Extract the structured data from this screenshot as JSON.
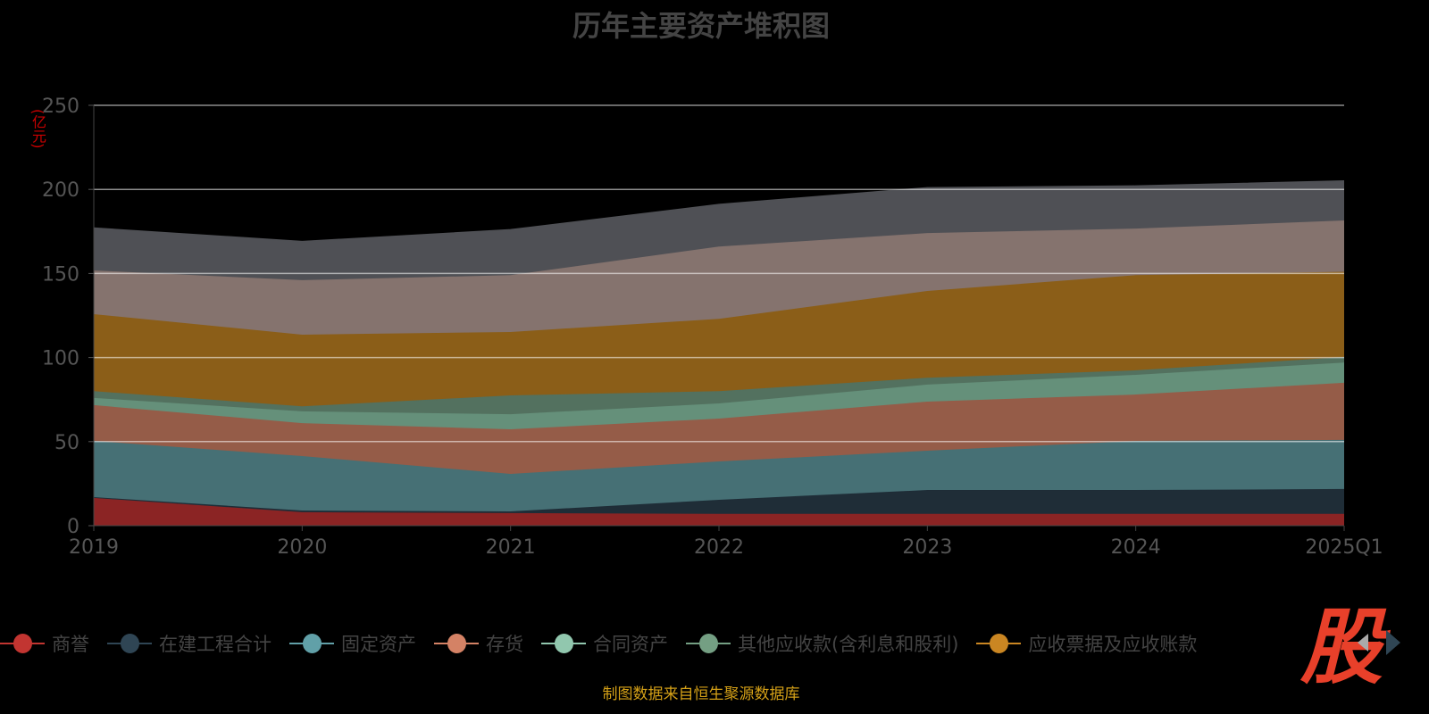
{
  "chart_data": {
    "type": "area",
    "stacked": true,
    "title": "历年主要资产堆积图",
    "ylabel": "(亿元)",
    "xlabel": "",
    "categories": [
      "2019",
      "2020",
      "2021",
      "2022",
      "2023",
      "2024",
      "2025Q1"
    ],
    "ylim": [
      0,
      250
    ],
    "yticks": [
      0,
      50,
      100,
      150,
      200,
      250
    ],
    "grid": true,
    "legend_position": "bottom",
    "series": [
      {
        "name": "商誉",
        "color": "#c23531",
        "fill": "#8b2424",
        "values": [
          16.5,
          8,
          7.5,
          7,
          7,
          7,
          7
        ]
      },
      {
        "name": "在建工程合计",
        "color": "#2f4554",
        "fill": "#1f2d37",
        "values": [
          0.5,
          1,
          1,
          8.4,
          14.2,
          14.2,
          14.8
        ]
      },
      {
        "name": "固定资产",
        "color": "#61a0a8",
        "fill": "#467075",
        "values": [
          33.4,
          32.4,
          22.3,
          22.8,
          23.4,
          29.2,
          29.2
        ]
      },
      {
        "name": "存货",
        "color": "#d48265",
        "fill": "#955c48",
        "values": [
          21.3,
          19.6,
          26.5,
          25.5,
          29.2,
          27.6,
          34
        ]
      },
      {
        "name": "合同资产",
        "color": "#91c7ae",
        "fill": "#65907a",
        "values": [
          4.3,
          7,
          9,
          9,
          10.1,
          11.7,
          12
        ]
      },
      {
        "name": "其他应收款(含利息和股利)",
        "color": "#749f83",
        "fill": "#53715f",
        "values": [
          4,
          3,
          11.2,
          7.3,
          4.1,
          2.7,
          3.3
        ]
      },
      {
        "name": "应收票据及应收账款",
        "color": "#ca8622",
        "fill": "#8b5e18",
        "values": [
          45.8,
          42.6,
          37.7,
          43,
          51.6,
          56.6,
          50.7
        ]
      },
      {
        "name": null,
        "color": "#bda29a",
        "fill": "#85736e",
        "values": [
          26,
          32.4,
          33.8,
          43,
          34.4,
          27.7,
          30.5
        ]
      },
      {
        "name": null,
        "color": "#6e7074",
        "fill": "#4f5055",
        "values": [
          25.2,
          23,
          27,
          25,
          27,
          25.3,
          23.5
        ]
      }
    ]
  },
  "footer": {
    "source": "制图数据来自恒生聚源数据库",
    "logo_text": "股"
  }
}
